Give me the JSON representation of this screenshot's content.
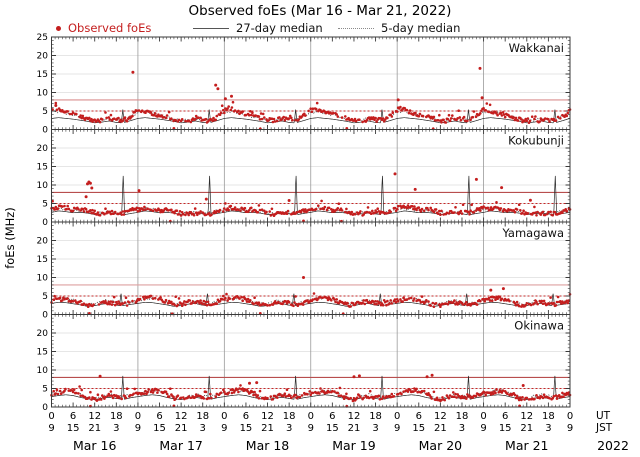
{
  "chart_data": {
    "type": "scatter+line (4 stacked station panels, ionosonde foEs time series)",
    "title": "Observed foEs (Mar 16 - Mar 21, 2022)",
    "legend": {
      "observed": "Observed foEs",
      "median27": "27-day median",
      "median5": "5-day median"
    },
    "axes": {
      "ylabel": "foEs (MHz)",
      "ylim": [
        0,
        25
      ],
      "ytick_major_step": 5,
      "ytick_labels_first_panel": [
        0,
        5,
        10,
        15,
        20,
        25
      ],
      "ytick_labels_other_panels": [
        0,
        5,
        10,
        15,
        20
      ],
      "n_days": 6,
      "hours_per_day": 24,
      "ut_tick_hours": [
        0,
        6,
        12,
        18
      ],
      "jst_tick_hours": [
        9,
        15,
        21,
        3
      ],
      "final_ut_tick": 0,
      "final_jst_tick": 9,
      "ut_axis_label": "UT",
      "jst_axis_label": "JST",
      "day_labels": [
        "Mar 16",
        "Mar 17",
        "Mar 18",
        "Mar 19",
        "Mar 20",
        "Mar 21"
      ],
      "year_label": "2022",
      "grid": "on"
    },
    "thresholds": {
      "solid_red_mhz": 8,
      "dotted_red_mhz": 5
    },
    "colors": {
      "observed_dot": "#c41e1e",
      "median27_line": "#2b2b2b",
      "median5_line": "#4a4a4a",
      "threshold_dotted": "#c62828",
      "grid_line": "#dedede",
      "day_line": "#9a9a9a",
      "frame": "#3a3a3a"
    },
    "panels": [
      {
        "station": "Wakkanai",
        "threshold_solid_color": "#d98f8f",
        "observed_diurnal_ut": [
          [
            0,
            5.2
          ],
          [
            1,
            5.6
          ],
          [
            3,
            4.8
          ],
          [
            5,
            4.2
          ],
          [
            7,
            3.8
          ],
          [
            9,
            3.2
          ],
          [
            11,
            2.6
          ],
          [
            13,
            2.3
          ],
          [
            15,
            2.6
          ],
          [
            17,
            2.9
          ],
          [
            19,
            2.5
          ],
          [
            21,
            2.8
          ],
          [
            23,
            4.4
          ],
          [
            24,
            5.2
          ]
        ],
        "day_scale": [
          1.0,
          0.95,
          1.05,
          1.0,
          1.02,
          0.94
        ],
        "spikes": [
          [
            22.6,
            15.5
          ],
          [
            45.6,
            12.0
          ],
          [
            46.2,
            11.0
          ],
          [
            48.3,
            8.3
          ],
          [
            50,
            9.0
          ],
          [
            96.3,
            8.0
          ],
          [
            119,
            16.5
          ],
          [
            119.6,
            8.6
          ],
          [
            1.2,
            6.5
          ]
        ],
        "dropouts": [
          [
            34,
            0.3
          ],
          [
            58,
            0.2
          ],
          [
            82,
            0.3
          ],
          [
            106,
            0.2
          ]
        ],
        "median27_diurnal_ut": [
          [
            0,
            3.0
          ],
          [
            2,
            3.2
          ],
          [
            4,
            3.0
          ],
          [
            6,
            2.8
          ],
          [
            8,
            2.5
          ],
          [
            10,
            2.2
          ],
          [
            12,
            1.8
          ],
          [
            14,
            2.0
          ],
          [
            16,
            2.3
          ],
          [
            18,
            1.9
          ],
          [
            19.4,
            1.8
          ],
          [
            19.8,
            5.4
          ],
          [
            20.2,
            1.9
          ],
          [
            22,
            2.4
          ],
          [
            24,
            3.0
          ]
        ],
        "median5_diurnal_ut": [
          [
            0,
            4.6
          ],
          [
            2,
            4.9
          ],
          [
            4,
            4.4
          ],
          [
            6,
            4.0
          ],
          [
            8,
            3.4
          ],
          [
            10,
            2.8
          ],
          [
            12,
            2.4
          ],
          [
            14,
            2.6
          ],
          [
            16,
            3.0
          ],
          [
            18,
            2.6
          ],
          [
            20,
            2.7
          ],
          [
            22,
            3.6
          ],
          [
            24,
            4.6
          ]
        ]
      },
      {
        "station": "Kokubunji",
        "threshold_solid_color": "#b84e4e",
        "observed_diurnal_ut": [
          [
            0,
            3.6
          ],
          [
            2,
            3.9
          ],
          [
            4,
            3.6
          ],
          [
            6,
            3.2
          ],
          [
            8,
            3.4
          ],
          [
            10,
            3.0
          ],
          [
            12,
            2.4
          ],
          [
            14,
            2.2
          ],
          [
            16,
            2.5
          ],
          [
            18,
            2.6
          ],
          [
            20,
            2.3
          ],
          [
            22,
            3.0
          ],
          [
            24,
            3.6
          ]
        ],
        "day_scale": [
          1.05,
          0.95,
          1.0,
          1.0,
          1.05,
          0.95
        ],
        "spikes": [
          [
            9.6,
            6.8
          ],
          [
            10,
            10.3
          ],
          [
            10.4,
            10.8
          ],
          [
            10.8,
            10.5
          ],
          [
            11.2,
            9.2
          ],
          [
            24.3,
            8.5
          ],
          [
            43,
            6.2
          ],
          [
            66,
            5.8
          ],
          [
            95.4,
            13.0
          ],
          [
            101,
            8.8
          ],
          [
            118,
            11.5
          ],
          [
            125,
            9.3
          ],
          [
            133,
            5.9
          ]
        ],
        "dropouts": [
          [
            33,
            0.2
          ],
          [
            70,
            0.3
          ],
          [
            80.5,
            0.2
          ]
        ],
        "median27_diurnal_ut": [
          [
            0,
            2.6
          ],
          [
            2,
            3.0
          ],
          [
            4,
            2.8
          ],
          [
            6,
            2.5
          ],
          [
            8,
            2.6
          ],
          [
            10,
            2.4
          ],
          [
            12,
            2.0
          ],
          [
            14,
            2.2
          ],
          [
            16,
            2.4
          ],
          [
            18,
            2.2
          ],
          [
            19.5,
            2.0
          ],
          [
            19.9,
            13.0
          ],
          [
            20.3,
            2.0
          ],
          [
            22,
            2.3
          ],
          [
            24,
            2.6
          ]
        ],
        "median5_diurnal_ut": [
          [
            0,
            3.4
          ],
          [
            2,
            3.7
          ],
          [
            4,
            3.4
          ],
          [
            6,
            3.1
          ],
          [
            8,
            3.2
          ],
          [
            10,
            2.8
          ],
          [
            12,
            2.4
          ],
          [
            14,
            2.5
          ],
          [
            16,
            2.7
          ],
          [
            18,
            2.5
          ],
          [
            20,
            2.6
          ],
          [
            22,
            3.0
          ],
          [
            24,
            3.4
          ]
        ]
      },
      {
        "station": "Yamagawa",
        "threshold_solid_color": "#dda0a0",
        "observed_diurnal_ut": [
          [
            0,
            3.8
          ],
          [
            2,
            4.2
          ],
          [
            4,
            4.4
          ],
          [
            6,
            4.0
          ],
          [
            8,
            3.4
          ],
          [
            10,
            2.6
          ],
          [
            12,
            2.6
          ],
          [
            14,
            3.2
          ],
          [
            16,
            3.4
          ],
          [
            18,
            3.0
          ],
          [
            20,
            2.8
          ],
          [
            22,
            3.2
          ],
          [
            24,
            3.8
          ]
        ],
        "day_scale": [
          0.95,
          1.05,
          1.0,
          1.02,
          0.98,
          1.0
        ],
        "spikes": [
          [
            70,
            10.0
          ],
          [
            122,
            6.6
          ],
          [
            125.5,
            7.0
          ]
        ],
        "dropouts": [
          [
            10.5,
            0.3
          ],
          [
            33.5,
            0.2
          ],
          [
            58,
            0.3
          ],
          [
            81,
            0.2
          ]
        ],
        "median27_diurnal_ut": [
          [
            0,
            3.0
          ],
          [
            2,
            3.3
          ],
          [
            4,
            3.2
          ],
          [
            6,
            2.9
          ],
          [
            8,
            2.6
          ],
          [
            10,
            2.2
          ],
          [
            12,
            2.4
          ],
          [
            14,
            2.8
          ],
          [
            16,
            3.0
          ],
          [
            17.5,
            2.6
          ],
          [
            18.9,
            2.4
          ],
          [
            19.3,
            5.8
          ],
          [
            19.7,
            2.4
          ],
          [
            21,
            2.6
          ],
          [
            24,
            3.0
          ]
        ],
        "median5_diurnal_ut": [
          [
            0,
            3.9
          ],
          [
            2,
            4.3
          ],
          [
            4,
            4.4
          ],
          [
            6,
            4.0
          ],
          [
            8,
            3.3
          ],
          [
            10,
            2.8
          ],
          [
            12,
            2.9
          ],
          [
            14,
            3.6
          ],
          [
            16,
            3.8
          ],
          [
            18,
            3.2
          ],
          [
            20,
            3.0
          ],
          [
            22,
            3.4
          ],
          [
            24,
            3.9
          ]
        ]
      },
      {
        "station": "Okinawa",
        "threshold_solid_color": "#b84e4e",
        "observed_diurnal_ut": [
          [
            0,
            3.6
          ],
          [
            2,
            4.0
          ],
          [
            4,
            4.4
          ],
          [
            6,
            4.3
          ],
          [
            8,
            3.6
          ],
          [
            10,
            2.4
          ],
          [
            12,
            2.0
          ],
          [
            14,
            2.6
          ],
          [
            16,
            3.0
          ],
          [
            18,
            2.8
          ],
          [
            20,
            2.6
          ],
          [
            22,
            3.2
          ],
          [
            24,
            3.6
          ]
        ],
        "day_scale": [
          1.0,
          1.0,
          1.05,
          0.95,
          1.02,
          0.98
        ],
        "spikes": [
          [
            13.5,
            8.3
          ],
          [
            55,
            6.4
          ],
          [
            57,
            6.6
          ],
          [
            84,
            8.2
          ],
          [
            85.5,
            8.4
          ],
          [
            104.3,
            8.2
          ],
          [
            105.7,
            8.6
          ],
          [
            131,
            5.8
          ]
        ],
        "dropouts": [
          [
            10.8,
            0.2
          ],
          [
            34,
            0.3
          ],
          [
            82,
            0.2
          ],
          [
            130,
            0.3
          ]
        ],
        "median27_diurnal_ut": [
          [
            0,
            2.8
          ],
          [
            2,
            3.1
          ],
          [
            4,
            3.3
          ],
          [
            6,
            3.1
          ],
          [
            8,
            2.6
          ],
          [
            10,
            2.2
          ],
          [
            12,
            2.0
          ],
          [
            14,
            2.4
          ],
          [
            16,
            2.6
          ],
          [
            18,
            2.3
          ],
          [
            19.4,
            2.1
          ],
          [
            19.8,
            8.4
          ],
          [
            20.2,
            2.1
          ],
          [
            22,
            2.5
          ],
          [
            24,
            2.8
          ]
        ],
        "median5_diurnal_ut": [
          [
            0,
            3.7
          ],
          [
            2,
            4.1
          ],
          [
            4,
            4.5
          ],
          [
            6,
            4.3
          ],
          [
            8,
            3.5
          ],
          [
            10,
            2.6
          ],
          [
            12,
            2.3
          ],
          [
            14,
            2.9
          ],
          [
            16,
            3.3
          ],
          [
            18,
            3.0
          ],
          [
            20,
            2.8
          ],
          [
            22,
            3.3
          ],
          [
            24,
            3.7
          ]
        ]
      }
    ]
  }
}
